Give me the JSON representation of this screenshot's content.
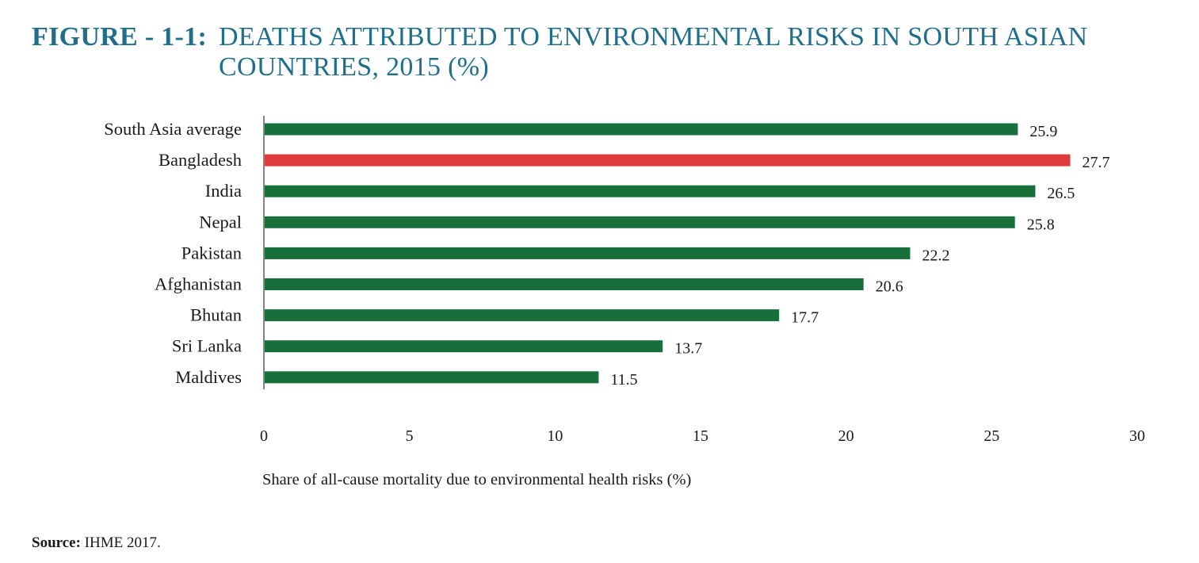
{
  "figure": {
    "label": "FIGURE - 1-1:",
    "title": "DEATHS ATTRIBUTED TO ENVIRONMENTAL RISKS IN SOUTH ASIAN COUNTRIES, 2015 (%)"
  },
  "source": {
    "label": "Source:",
    "text": "IHME 2017."
  },
  "colors": {
    "title": "#1f6f8b",
    "bar_default": "#17703a",
    "bar_highlight": "#e0393e"
  },
  "chart_data": {
    "type": "bar",
    "orientation": "horizontal",
    "title": "DEATHS ATTRIBUTED TO ENVIRONMENTAL RISKS IN SOUTH ASIAN COUNTRIES, 2015 (%)",
    "categories": [
      "South Asia average",
      "Bangladesh",
      "India",
      "Nepal",
      "Pakistan",
      "Afghanistan",
      "Bhutan",
      "Sri Lanka",
      "Maldives"
    ],
    "values": [
      25.9,
      27.7,
      26.5,
      25.8,
      22.2,
      20.6,
      17.7,
      13.7,
      11.5
    ],
    "value_labels": [
      "25.9",
      "27.7",
      "26.5",
      "25.8",
      "22.2",
      "20.6",
      "17.7",
      "13.7",
      "11.5"
    ],
    "highlight": "Bangladesh",
    "xlabel": "Share of all-cause mortality due to environmental health risks (%)",
    "ylabel": "",
    "xlim": [
      0,
      30
    ],
    "xticks": [
      0,
      5,
      10,
      15,
      20,
      25,
      30
    ],
    "grid": false,
    "legend": "none"
  }
}
